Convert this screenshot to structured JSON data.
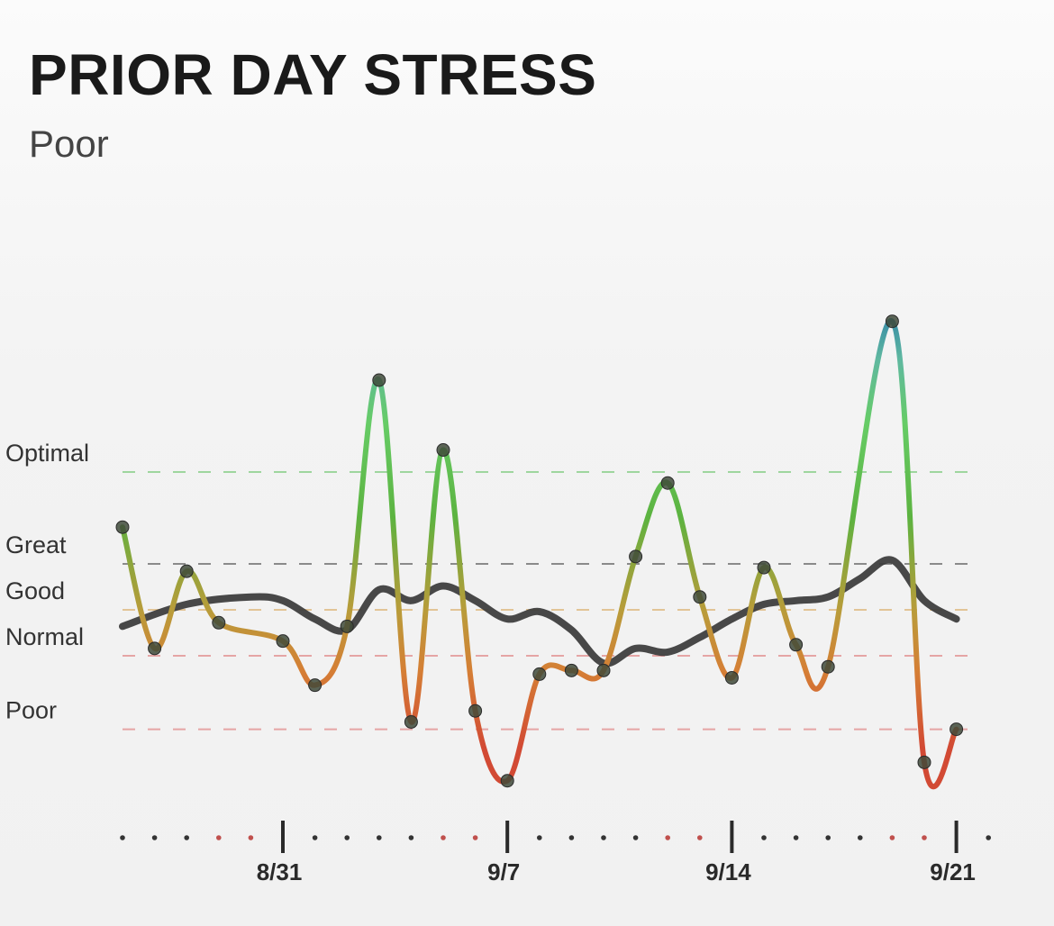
{
  "title": "PRIOR DAY STRESS",
  "status": "Poor",
  "chart_data": {
    "type": "line",
    "levels": [
      {
        "name": "Optimal",
        "value": 75,
        "color": "#9ed69e"
      },
      {
        "name": "Great",
        "value": 50,
        "color": "#8a8a8a"
      },
      {
        "name": "Good",
        "value": 37.5,
        "color": "#e2c496"
      },
      {
        "name": "Normal",
        "value": 25,
        "color": "#e5a5a5"
      },
      {
        "name": "Poor",
        "value": 5,
        "color": "#e5a5a5"
      }
    ],
    "x_ticks": [
      {
        "day": 5,
        "label": "8/31"
      },
      {
        "day": 12,
        "label": "9/7"
      },
      {
        "day": 19,
        "label": "9/14"
      },
      {
        "day": 26,
        "label": "9/21"
      }
    ],
    "dots": [
      {
        "day": 0,
        "color": "#333333"
      },
      {
        "day": 1,
        "color": "#333333"
      },
      {
        "day": 2,
        "color": "#333333"
      },
      {
        "day": 3,
        "color": "#c0504d"
      },
      {
        "day": 4,
        "color": "#c0504d"
      },
      {
        "day": 6,
        "color": "#333333"
      },
      {
        "day": 7,
        "color": "#333333"
      },
      {
        "day": 8,
        "color": "#333333"
      },
      {
        "day": 9,
        "color": "#333333"
      },
      {
        "day": 10,
        "color": "#c0504d"
      },
      {
        "day": 11,
        "color": "#c0504d"
      },
      {
        "day": 13,
        "color": "#333333"
      },
      {
        "day": 14,
        "color": "#333333"
      },
      {
        "day": 15,
        "color": "#333333"
      },
      {
        "day": 16,
        "color": "#333333"
      },
      {
        "day": 17,
        "color": "#c0504d"
      },
      {
        "day": 18,
        "color": "#c0504d"
      },
      {
        "day": 20,
        "color": "#333333"
      },
      {
        "day": 21,
        "color": "#333333"
      },
      {
        "day": 22,
        "color": "#333333"
      },
      {
        "day": 23,
        "color": "#333333"
      },
      {
        "day": 24,
        "color": "#c0504d"
      },
      {
        "day": 25,
        "color": "#c0504d"
      },
      {
        "day": 27,
        "color": "#333333"
      }
    ],
    "series": [
      {
        "kind": "daily",
        "points": [
          {
            "day": 0,
            "value": 60
          },
          {
            "day": 1,
            "value": 27
          },
          {
            "day": 2,
            "value": 48
          },
          {
            "day": 3,
            "value": 34
          },
          {
            "day": 5,
            "value": 29
          },
          {
            "day": 6,
            "value": 17
          },
          {
            "day": 7,
            "value": 33
          },
          {
            "day": 8,
            "value": 100
          },
          {
            "day": 9,
            "value": 7
          },
          {
            "day": 10,
            "value": 81
          },
          {
            "day": 11,
            "value": 10
          },
          {
            "day": 12,
            "value": -9
          },
          {
            "day": 13,
            "value": 20
          },
          {
            "day": 14,
            "value": 21
          },
          {
            "day": 15,
            "value": 21
          },
          {
            "day": 16,
            "value": 52
          },
          {
            "day": 17,
            "value": 72
          },
          {
            "day": 18,
            "value": 41
          },
          {
            "day": 19,
            "value": 19
          },
          {
            "day": 20,
            "value": 49
          },
          {
            "day": 21,
            "value": 28
          },
          {
            "day": 22,
            "value": 22
          },
          {
            "day": 24,
            "value": 116
          },
          {
            "day": 25,
            "value": -4
          },
          {
            "day": 26,
            "value": 5
          }
        ]
      },
      {
        "kind": "trend",
        "color": "#3a3a3a",
        "points": [
          {
            "day": 0,
            "value": 33
          },
          {
            "day": 2,
            "value": 39
          },
          {
            "day": 4,
            "value": 41
          },
          {
            "day": 5,
            "value": 40
          },
          {
            "day": 6,
            "value": 35
          },
          {
            "day": 7,
            "value": 32
          },
          {
            "day": 8,
            "value": 43
          },
          {
            "day": 9,
            "value": 40
          },
          {
            "day": 10,
            "value": 44
          },
          {
            "day": 11,
            "value": 40
          },
          {
            "day": 12,
            "value": 35
          },
          {
            "day": 13,
            "value": 37
          },
          {
            "day": 14,
            "value": 32
          },
          {
            "day": 15,
            "value": 23
          },
          {
            "day": 16,
            "value": 27
          },
          {
            "day": 17,
            "value": 26
          },
          {
            "day": 18,
            "value": 30
          },
          {
            "day": 19,
            "value": 35
          },
          {
            "day": 20,
            "value": 39
          },
          {
            "day": 21,
            "value": 40
          },
          {
            "day": 22,
            "value": 41
          },
          {
            "day": 23,
            "value": 46
          },
          {
            "day": 24,
            "value": 51
          },
          {
            "day": 25,
            "value": 40
          },
          {
            "day": 26,
            "value": 35
          }
        ]
      }
    ]
  }
}
